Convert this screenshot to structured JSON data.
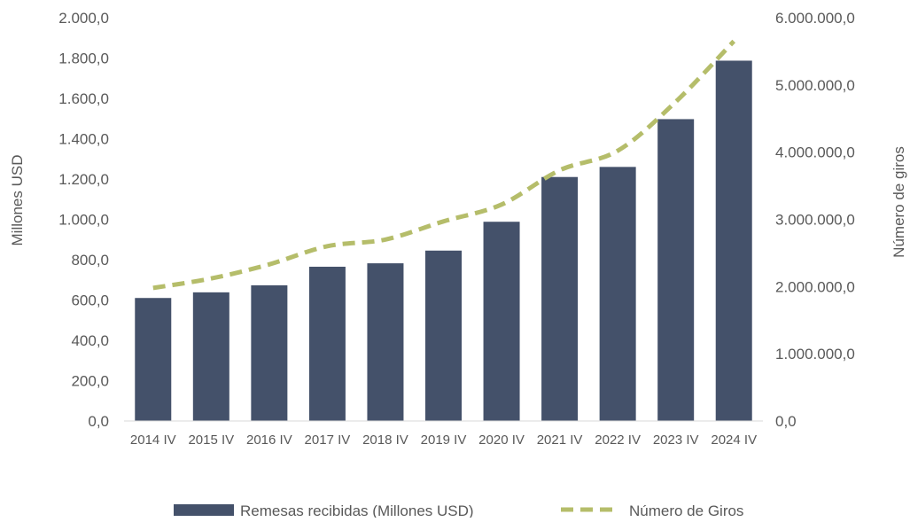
{
  "chart_data": {
    "type": "bar",
    "categories": [
      "2014 IV",
      "2015 IV",
      "2016 IV",
      "2017 IV",
      "2018 IV",
      "2019 IV",
      "2020 IV",
      "2021 IV",
      "2022 IV",
      "2023 IV",
      "2024 IV"
    ],
    "series": [
      {
        "name": "Remesas recibidas (Millones USD)",
        "type": "bar",
        "axis": "left",
        "color": "#44516a",
        "values": [
          610,
          638,
          673,
          765,
          782,
          845,
          988,
          1210,
          1260,
          1497,
          1787
        ]
      },
      {
        "name": "Número de Giros",
        "type": "line",
        "style": "dashed",
        "axis": "right",
        "color": "#b5bd6a",
        "values": [
          1980000,
          2120000,
          2330000,
          2600000,
          2700000,
          2970000,
          3220000,
          3730000,
          4020000,
          4750000,
          5650000
        ]
      }
    ],
    "ylabel": "Millones USD",
    "y2label": "Número de giros",
    "ylim": [
      0,
      2000
    ],
    "y2lim": [
      0,
      6000000
    ],
    "yticks": [
      "0,0",
      "200,0",
      "400,0",
      "600,0",
      "800,0",
      "1.000,0",
      "1.200,0",
      "1.400,0",
      "1.600,0",
      "1.800,0",
      "2.000,0"
    ],
    "y2ticks": [
      "0,0",
      "1.000.000,0",
      "2.000.000,0",
      "3.000.000,0",
      "4.000.000,0",
      "5.000.000,0",
      "6.000.000,0"
    ],
    "grid": false,
    "legend_position": "bottom"
  }
}
